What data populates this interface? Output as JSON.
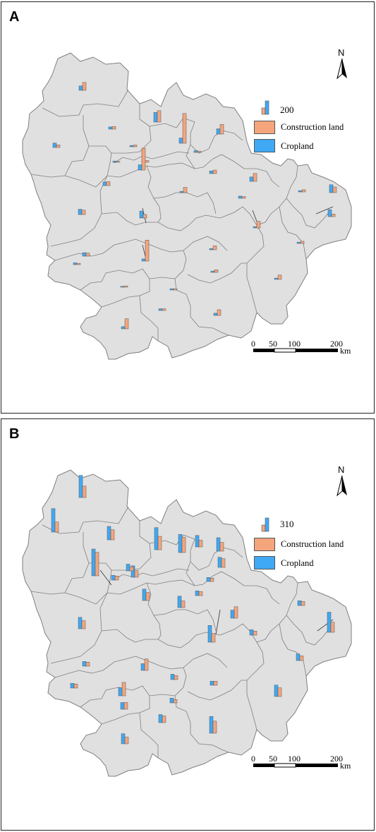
{
  "colors": {
    "construction": "#f4a57c",
    "cropland": "#3fa9f5",
    "map_fill": "#e0e0e0",
    "boundary": "#7f7f7f"
  },
  "panels": [
    {
      "letter": "A",
      "legend": {
        "value_label": "200",
        "construction_label": "Construction land",
        "cropland_label": "Cropland"
      },
      "north_label": "N",
      "scale": {
        "ticks": [
          "0",
          "50",
          "100",
          "200"
        ],
        "unit": "km"
      },
      "chart_data": {
        "type": "bar",
        "series": [
          "Cropland",
          "Construction land"
        ],
        "values": [
          [
            10,
            18
          ],
          [
            10,
            6
          ],
          [
            5,
            6
          ],
          [
            22,
            26
          ],
          [
            12,
            68
          ],
          [
            3,
            4
          ],
          [
            3,
            2
          ],
          [
            12,
            22
          ],
          [
            4,
            3
          ],
          [
            4,
            4
          ],
          [
            8,
            9
          ],
          [
            12,
            10
          ],
          [
            16,
            8
          ],
          [
            6,
            8
          ],
          [
            3,
            12
          ],
          [
            5,
            4
          ],
          [
            3,
            5
          ],
          [
            16,
            6
          ],
          [
            8,
            7
          ],
          [
            5,
            48
          ],
          [
            3,
            9
          ],
          [
            4,
            3
          ],
          [
            3,
            15
          ],
          [
            3,
            5
          ],
          [
            5,
            23
          ],
          [
            2,
            3
          ],
          [
            12,
            50
          ],
          [
            10,
            18
          ],
          [
            18,
            13
          ],
          [
            3,
            3
          ],
          [
            3,
            10
          ],
          [
            3,
            6
          ],
          [
            4,
            4
          ],
          [
            5,
            13
          ]
        ]
      }
    },
    {
      "letter": "B",
      "legend": {
        "value_label": "310",
        "construction_label": "Construction land",
        "cropland_label": "Cropland"
      },
      "north_label": "N",
      "scale": {
        "ticks": [
          "0",
          "50",
          "100",
          "200"
        ],
        "unit": "km"
      },
      "chart_data": {
        "type": "bar",
        "series": [
          "Cropland",
          "Construction land"
        ],
        "values": [
          [
            33,
            17
          ],
          [
            35,
            15
          ],
          [
            20,
            15
          ],
          [
            33,
            20
          ],
          [
            27,
            23
          ],
          [
            20,
            13
          ],
          [
            17,
            10
          ],
          [
            7,
            6
          ],
          [
            17,
            10
          ],
          [
            10,
            6
          ],
          [
            6,
            5
          ],
          [
            40,
            35
          ],
          [
            15,
            13
          ],
          [
            7,
            6
          ],
          [
            17,
            12
          ],
          [
            17,
            10
          ],
          [
            7,
            6
          ],
          [
            7,
            6
          ],
          [
            10,
            17
          ],
          [
            12,
            20
          ],
          [
            10,
            10
          ],
          [
            12,
            10
          ],
          [
            7,
            6
          ],
          [
            30,
            15
          ],
          [
            10,
            7
          ],
          [
            17,
            13
          ],
          [
            25,
            18
          ],
          [
            12,
            17
          ],
          [
            6,
            6
          ],
          [
            8,
            6
          ],
          [
            7,
            5
          ],
          [
            8,
            6
          ],
          [
            25,
            13
          ],
          [
            15,
            10
          ],
          [
            17,
            12
          ]
        ]
      }
    }
  ]
}
